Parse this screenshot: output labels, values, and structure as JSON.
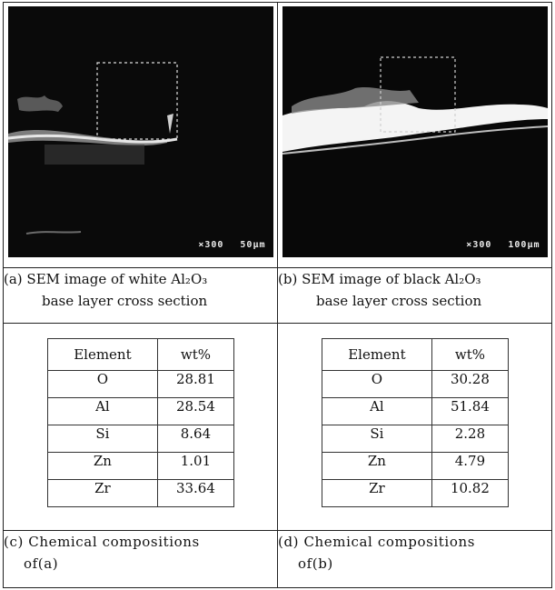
{
  "panels": {
    "a": {
      "scale_mag": "×300",
      "scale_len": "50μm",
      "caption_line1": "(a) SEM image of white Al₂O₃",
      "caption_line2": "base layer cross section"
    },
    "b": {
      "scale_mag": "×300",
      "scale_len": "100μm",
      "caption_line1": "(b) SEM image of black Al₂O₃",
      "caption_line2": "base layer cross section"
    }
  },
  "tables": {
    "c": {
      "headers": [
        "Element",
        "wt%"
      ],
      "rows": [
        [
          "O",
          "28.81"
        ],
        [
          "Al",
          "28.54"
        ],
        [
          "Si",
          "8.64"
        ],
        [
          "Zn",
          "1.01"
        ],
        [
          "Zr",
          "33.64"
        ]
      ],
      "caption_line1": "(c) Chemical compositions",
      "caption_line2": "of(a)"
    },
    "d": {
      "headers": [
        "Element",
        "wt%"
      ],
      "rows": [
        [
          "O",
          "30.28"
        ],
        [
          "Al",
          "51.84"
        ],
        [
          "Si",
          "2.28"
        ],
        [
          "Zn",
          "4.79"
        ],
        [
          "Zr",
          "10.82"
        ]
      ],
      "caption_line1": "(d) Chemical compositions",
      "caption_line2": "of(b)"
    }
  }
}
